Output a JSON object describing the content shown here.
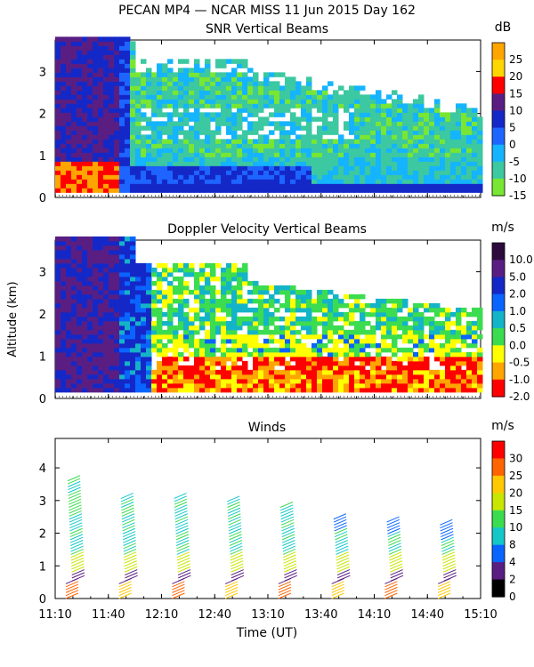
{
  "figure": {
    "title": "PECAN MP4 — NCAR MISS  11 Jun 2015 Day 162",
    "xlabel": "Time (UT)",
    "xticks": [
      "11:10",
      "11:40",
      "12:10",
      "12:40",
      "13:10",
      "13:40",
      "14:10",
      "14:40",
      "15:10"
    ]
  },
  "chart_data": [
    {
      "type": "heatmap",
      "title": "SNR Vertical Beams",
      "ylabel": "",
      "yticks": [
        0,
        1,
        2,
        3
      ],
      "ylim": [
        0,
        3.75
      ],
      "colorbar": {
        "unit": "dB",
        "labels": [
          "25",
          "20",
          "15",
          "10",
          "5",
          "0",
          "-5",
          "-10",
          "-15"
        ],
        "colors": [
          "#ffa500",
          "#ffd700",
          "#ff0000",
          "#5a1e82",
          "#1428c8",
          "#1e64ff",
          "#14b4ff",
          "#3cc8a0",
          "#78e632"
        ]
      }
    },
    {
      "type": "heatmap",
      "title": "Doppler Velocity Vertical Beams",
      "ylabel": "Altitude (km)",
      "yticks": [
        0,
        1,
        2,
        3
      ],
      "ylim": [
        0,
        3.75
      ],
      "colorbar": {
        "unit": "m/s",
        "labels": [
          "10.0",
          "5.0",
          "2.0",
          "1.0",
          "0.5",
          "0.0",
          "-0.5",
          "-1.0",
          "-2.0"
        ],
        "colors": [
          "#2d0a3c",
          "#5a1e82",
          "#1428c8",
          "#0a64ff",
          "#14b4c8",
          "#3cdc50",
          "#ffff00",
          "#ffa500",
          "#ff0000"
        ]
      }
    },
    {
      "type": "scatter",
      "title": "Winds",
      "ylabel": "",
      "yticks": [
        0,
        1,
        2,
        3,
        4
      ],
      "ylim": [
        0,
        4.9
      ],
      "profile_times": [
        "11:20",
        "11:50",
        "12:20",
        "12:50",
        "13:20",
        "13:50",
        "14:20",
        "14:50"
      ],
      "profile_tops_km": [
        3.6,
        3.1,
        3.1,
        3.0,
        2.8,
        2.5,
        2.4,
        2.3
      ],
      "colorbar": {
        "unit": "m/s",
        "labels": [
          "30",
          "25",
          "20",
          "15",
          "10",
          "8",
          "4",
          "2",
          "0"
        ],
        "colors": [
          "#ff0000",
          "#ff6400",
          "#ffc800",
          "#c8e600",
          "#3cdc50",
          "#14c8c8",
          "#0a64ff",
          "#5a1e82",
          "#000000"
        ]
      }
    }
  ]
}
